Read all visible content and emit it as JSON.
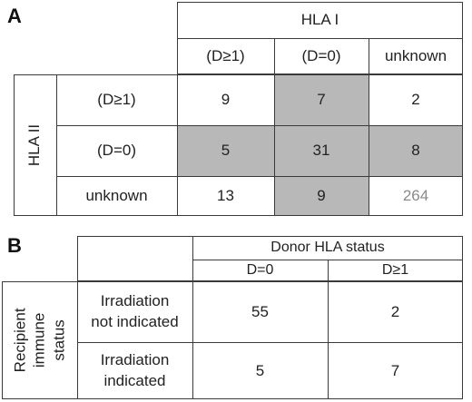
{
  "panelA": {
    "label": "A",
    "col_group": "HLA I",
    "row_group": "HLA II",
    "col_headers": [
      "(D≥1)",
      "(D=0)",
      "unknown"
    ],
    "row_headers": [
      "(D≥1)",
      "(D=0)",
      "unknown"
    ],
    "rows": [
      [
        "9",
        "7",
        "2"
      ],
      [
        "5",
        "31",
        "8"
      ],
      [
        "13",
        "9",
        "264"
      ]
    ]
  },
  "panelB": {
    "label": "B",
    "col_group": "Donor HLA status",
    "col_headers": [
      "D=0",
      "D≥1"
    ],
    "row_group": [
      "Recipient",
      "immune",
      "status"
    ],
    "rows": [
      {
        "label_line1": "Irradiation",
        "label_line2": "not indicated",
        "values": [
          "55",
          "2"
        ]
      },
      {
        "label_line1": "Irradiation",
        "label_line2": "indicated",
        "values": [
          "5",
          "7"
        ]
      }
    ]
  }
}
